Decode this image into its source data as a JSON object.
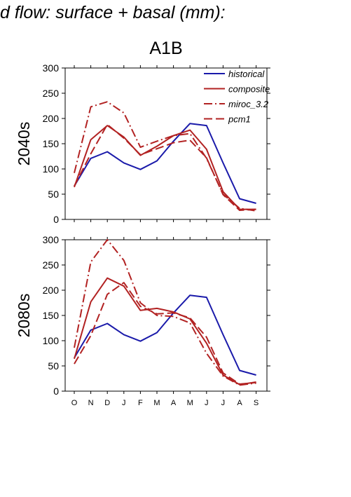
{
  "header": {
    "title": "d flow: surface + basal (mm):",
    "scenario": "A1B"
  },
  "colors": {
    "historical": "#1a1aaa",
    "future": "#b22222"
  },
  "chart_data": {
    "type": "line",
    "categories": [
      "O",
      "N",
      "D",
      "J",
      "F",
      "M",
      "A",
      "M",
      "J",
      "J",
      "A",
      "S"
    ],
    "ylim": [
      0,
      300
    ],
    "yticks": [
      0,
      50,
      100,
      150,
      200,
      250,
      300
    ],
    "legend": [
      "historical",
      "composite",
      "miroc_3.2",
      "pcm1"
    ],
    "legend_position": "top-right",
    "panels": [
      {
        "label": "2040s",
        "series": [
          {
            "name": "historical",
            "values": [
              66,
              121,
              134,
              112,
              99,
              116,
              155,
              190,
              186,
              112,
              41,
              32
            ]
          },
          {
            "name": "composite",
            "values": [
              64,
              158,
              186,
              163,
              127,
              145,
              166,
              177,
              139,
              55,
              20,
              20
            ]
          },
          {
            "name": "miroc_3.2",
            "values": [
              92,
              223,
              233,
              211,
              143,
              155,
              166,
              170,
              121,
              50,
              22,
              17
            ]
          },
          {
            "name": "pcm1",
            "values": [
              66,
              130,
              188,
              161,
              128,
              140,
              152,
              157,
              122,
              49,
              18,
              20
            ]
          }
        ]
      },
      {
        "label": "2080s",
        "series": [
          {
            "name": "historical",
            "values": [
              66,
              121,
              134,
              112,
              99,
              116,
              155,
              190,
              186,
              112,
              41,
              32
            ]
          },
          {
            "name": "composite",
            "values": [
              64,
              177,
              224,
              208,
              160,
              164,
              157,
              143,
              95,
              32,
              13,
              18
            ]
          },
          {
            "name": "miroc_3.2",
            "values": [
              86,
              256,
              300,
              259,
              175,
              150,
              148,
              135,
              75,
              30,
              12,
              16
            ]
          },
          {
            "name": "pcm1",
            "values": [
              54,
              110,
              192,
              215,
              168,
              153,
              155,
              145,
              107,
              36,
              14,
              17
            ]
          }
        ]
      }
    ]
  }
}
